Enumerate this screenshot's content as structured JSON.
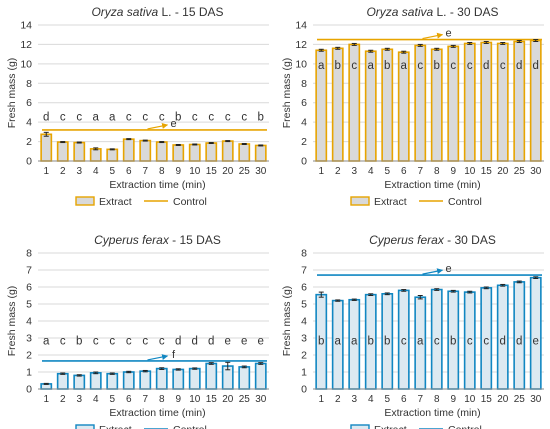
{
  "figure": {
    "xlabel": "Extraction time (min)",
    "ylabel": "Fresh mass (g)",
    "legend_extract": "Extract",
    "legend_control": "Control"
  },
  "colors": {
    "orange_stroke": "#E7A400",
    "orange_fill": "#D9D9D9",
    "blue_stroke": "#1187C2",
    "blue_fill": "#DCE9F1",
    "grid": "#D9D9D9",
    "axis": "#888888",
    "text": "#333333",
    "error_bar": "#222222"
  },
  "chart_data": [
    {
      "type": "bar",
      "title_italic": "Oryza sativa",
      "title_rest": " L. - 15 DAS",
      "categories": [
        "1",
        "2",
        "3",
        "4",
        "5",
        "6",
        "7",
        "8",
        "9",
        "10",
        "15",
        "20",
        "25",
        "30"
      ],
      "values": [
        2.75,
        1.95,
        1.9,
        1.25,
        1.2,
        2.25,
        2.1,
        1.95,
        1.65,
        1.7,
        1.85,
        2.05,
        1.75,
        1.6
      ],
      "errors": [
        0.2,
        0.05,
        0.05,
        0.1,
        0.05,
        0.05,
        0.05,
        0.05,
        0.05,
        0.05,
        0.05,
        0.05,
        0.05,
        0.05
      ],
      "letters": [
        "d",
        "c",
        "c",
        "a",
        "a",
        "c",
        "c",
        "c",
        "b",
        "c",
        "c",
        "c",
        "c",
        "b"
      ],
      "letter_y": 4.6,
      "control_value": 3.2,
      "control_letter": "e",
      "ylim": [
        0,
        14
      ],
      "yticks": [
        0,
        2,
        4,
        6,
        8,
        10,
        12,
        14
      ],
      "series": [
        {
          "name": "Extract"
        },
        {
          "name": "Control"
        }
      ],
      "palette": "orange",
      "legend": "bottom"
    },
    {
      "type": "bar",
      "title_italic": "Oryza sativa",
      "title_rest": " L. - 30 DAS",
      "categories": [
        "1",
        "2",
        "3",
        "4",
        "5",
        "6",
        "7",
        "8",
        "9",
        "10",
        "15",
        "20",
        "25",
        "30"
      ],
      "values": [
        11.4,
        11.6,
        12.0,
        11.3,
        11.5,
        11.2,
        11.9,
        11.5,
        11.8,
        12.1,
        12.2,
        12.1,
        12.3,
        12.4
      ],
      "errors": [
        0.1,
        0.1,
        0.1,
        0.1,
        0.1,
        0.1,
        0.1,
        0.1,
        0.1,
        0.1,
        0.1,
        0.1,
        0.1,
        0.1
      ],
      "letters": [
        "a",
        "b",
        "c",
        "a",
        "b",
        "a",
        "c",
        "b",
        "c",
        "c",
        "d",
        "c",
        "d",
        "d"
      ],
      "letter_y": 9.9,
      "control_value": 12.5,
      "control_letter": "e",
      "ylim": [
        0,
        14
      ],
      "yticks": [
        0,
        2,
        4,
        6,
        8,
        10,
        12,
        14
      ],
      "series": [
        {
          "name": "Extract"
        },
        {
          "name": "Control"
        }
      ],
      "palette": "orange",
      "legend": "bottom"
    },
    {
      "type": "bar",
      "title_italic": "Cyperus ferax",
      "title_rest": " - 15 DAS",
      "categories": [
        "1",
        "2",
        "3",
        "4",
        "5",
        "6",
        "7",
        "8",
        "9",
        "10",
        "15",
        "20",
        "25",
        "30"
      ],
      "values": [
        0.3,
        0.9,
        0.8,
        0.95,
        0.9,
        1.0,
        1.05,
        1.2,
        1.15,
        1.2,
        1.5,
        1.35,
        1.3,
        1.5
      ],
      "errors": [
        0.03,
        0.04,
        0.04,
        0.05,
        0.04,
        0.04,
        0.04,
        0.05,
        0.04,
        0.04,
        0.05,
        0.22,
        0.05,
        0.05
      ],
      "letters": [
        "a",
        "c",
        "b",
        "c",
        "c",
        "c",
        "c",
        "c",
        "d",
        "d",
        "d",
        "e",
        "e",
        "e"
      ],
      "letter_y": 2.85,
      "control_value": 1.65,
      "control_letter": "f",
      "ylim": [
        0,
        8
      ],
      "yticks": [
        0,
        1,
        2,
        3,
        4,
        5,
        6,
        7,
        8
      ],
      "series": [
        {
          "name": "Extract"
        },
        {
          "name": "Control"
        }
      ],
      "palette": "blue",
      "legend": "bottom"
    },
    {
      "type": "bar",
      "title_italic": "Cyperus ferax",
      "title_rest": " - 30 DAS",
      "categories": [
        "1",
        "2",
        "3",
        "4",
        "5",
        "6",
        "7",
        "8",
        "9",
        "10",
        "15",
        "20",
        "25",
        "30"
      ],
      "values": [
        5.55,
        5.2,
        5.25,
        5.55,
        5.6,
        5.8,
        5.4,
        5.85,
        5.75,
        5.7,
        5.95,
        6.1,
        6.3,
        6.55
      ],
      "errors": [
        0.15,
        0.04,
        0.04,
        0.05,
        0.05,
        0.05,
        0.1,
        0.05,
        0.05,
        0.05,
        0.05,
        0.05,
        0.05,
        0.05
      ],
      "letters": [
        "b",
        "a",
        "a",
        "b",
        "b",
        "c",
        "a",
        "c",
        "b",
        "c",
        "c",
        "d",
        "d",
        "e"
      ],
      "letter_y": 2.85,
      "control_value": 6.7,
      "control_letter": "e",
      "ylim": [
        0,
        8
      ],
      "yticks": [
        0,
        1,
        2,
        3,
        4,
        5,
        6,
        7,
        8
      ],
      "series": [
        {
          "name": "Extract"
        },
        {
          "name": "Control"
        }
      ],
      "palette": "blue",
      "legend": "bottom"
    }
  ]
}
